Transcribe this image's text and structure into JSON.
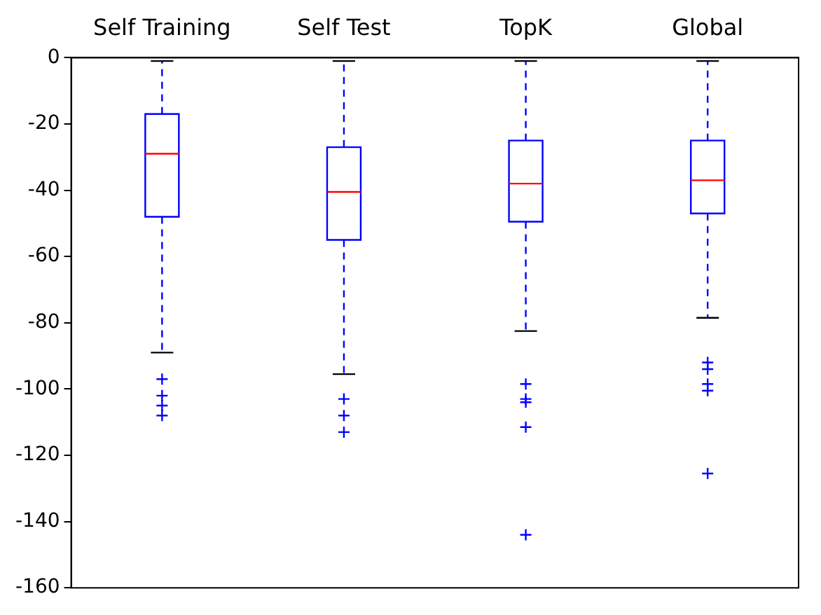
{
  "chart_data": {
    "type": "box",
    "categories": [
      "Self Training",
      "Self Test",
      "TopK",
      "Global"
    ],
    "color": "#0000ff",
    "boxes": [
      {
        "low": -89,
        "q1": -48,
        "median": -29,
        "q3": -17,
        "high": -1,
        "outliers": [
          -97,
          -102,
          -105,
          -108
        ]
      },
      {
        "low": -95.5,
        "q1": -55,
        "median": -40.5,
        "q3": -27,
        "high": -1,
        "outliers": [
          -103,
          -108,
          -113
        ]
      },
      {
        "low": -82.5,
        "q1": -49.5,
        "median": -38,
        "q3": -25,
        "high": -1,
        "outliers": [
          -98.5,
          -103,
          -104,
          -111.5,
          -144
        ]
      },
      {
        "low": -78.5,
        "q1": -47,
        "median": -37,
        "q3": -25,
        "high": -1,
        "outliers": [
          -92,
          -94,
          -98.5,
          -100.5,
          -125.5
        ]
      }
    ],
    "ylim": [
      -160,
      0
    ],
    "yticks": [
      -160,
      -140,
      -120,
      -100,
      -80,
      -60,
      -40,
      -20,
      0
    ],
    "grid": false
  }
}
